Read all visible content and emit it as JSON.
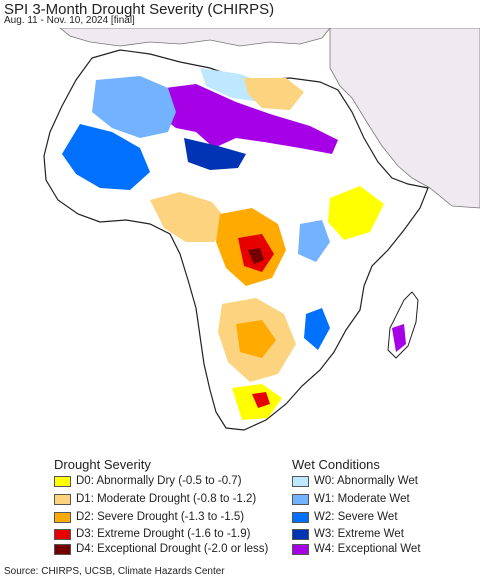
{
  "title": "SPI 3-Month Drought Severity (CHIRPS)",
  "subtitle": "Aug. 11 - Nov. 10, 2024 [final]",
  "colors": {
    "ocean": "#ffffff",
    "land_normal": "#ffffff",
    "outside_region": "#eeeaf0",
    "border": "#222222",
    "D0": "#ffff00",
    "D1": "#fcd37f",
    "D2": "#ffaa00",
    "D3": "#e60000",
    "D4": "#730000",
    "W0": "#bee8ff",
    "W1": "#73b2ff",
    "W2": "#0070ff",
    "W3": "#0034b5",
    "W4": "#a500e6"
  },
  "legend": {
    "drought": {
      "title": "Drought Severity",
      "items": [
        {
          "key": "D0",
          "label": "D0: Abnormally Dry (-0.5 to -0.7)"
        },
        {
          "key": "D1",
          "label": "D1: Moderate Drought (-0.8 to -1.2)"
        },
        {
          "key": "D2",
          "label": "D2: Severe Drought (-1.3 to -1.5)"
        },
        {
          "key": "D3",
          "label": "D3: Extreme Drought (-1.6 to -1.9)"
        },
        {
          "key": "D4",
          "label": "D4: Exceptional Drought (-2.0 or less)"
        }
      ]
    },
    "wet": {
      "title": "Wet Conditions",
      "items": [
        {
          "key": "W0",
          "label": "W0: Abnormally Wet"
        },
        {
          "key": "W1",
          "label": "W1: Moderate Wet"
        },
        {
          "key": "W2",
          "label": "W2: Severe Wet"
        },
        {
          "key": "W3",
          "label": "W3: Extreme Wet"
        },
        {
          "key": "W4",
          "label": "W4: Exceptional Wet"
        }
      ]
    }
  },
  "source": "Source: CHIRPS, UCSB, Climate Hazards Center"
}
